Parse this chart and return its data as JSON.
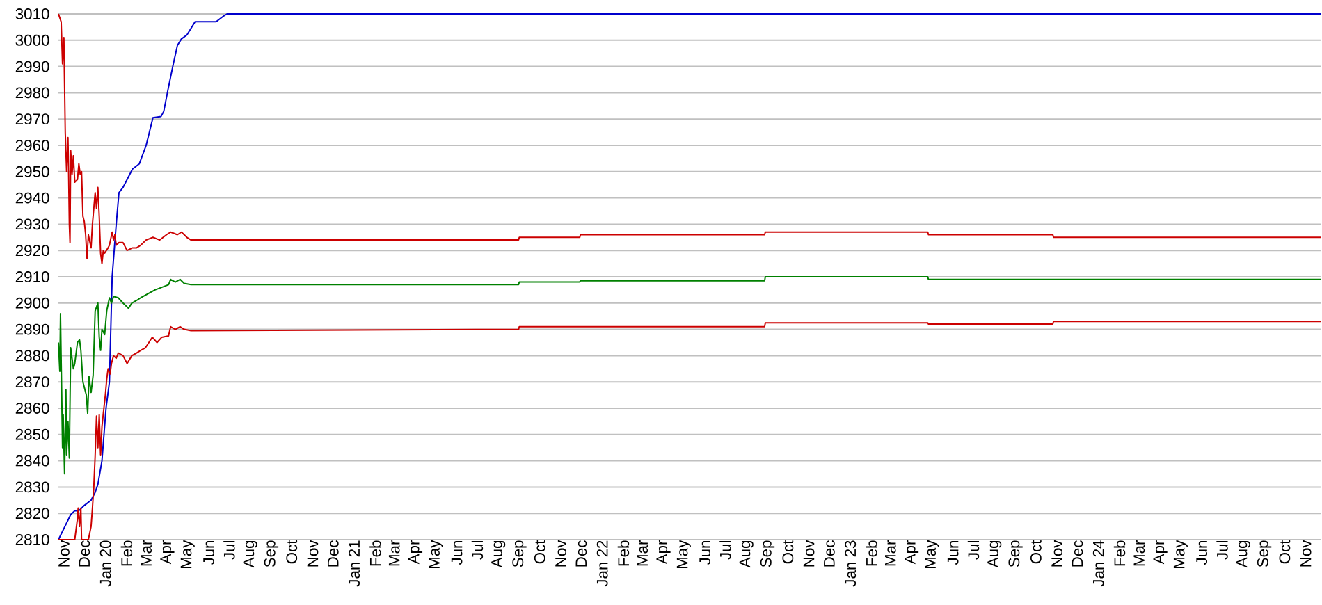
{
  "chart_data": {
    "type": "line",
    "series": [
      {
        "color": "#0000cc",
        "x": [
          "2019-11-01",
          "2019-11-19",
          "2019-11-25",
          "2019-12-01",
          "2019-12-09",
          "2019-12-19",
          "2019-12-25",
          "2019-12-29",
          "2020-01-04",
          "2020-01-10",
          "2020-01-15",
          "2020-01-19",
          "2020-01-25",
          "2020-01-29",
          "2020-02-04",
          "2020-02-14",
          "2020-02-18",
          "2020-02-28",
          "2020-03-09",
          "2020-03-19",
          "2020-03-31",
          "2020-04-04",
          "2020-04-10",
          "2020-04-18",
          "2020-04-24",
          "2020-04-30",
          "2020-05-08",
          "2020-05-20",
          "2020-06-20",
          "2020-06-30",
          "2020-07-06",
          "2024-12-01"
        ],
        "values": [
          2810,
          2819.5,
          2821,
          2821,
          2823,
          2825,
          2828,
          2831,
          2840,
          2860,
          2870,
          2910,
          2930,
          2942,
          2944,
          2949,
          2951,
          2953,
          2960,
          2970.5,
          2971,
          2973,
          2981,
          2991,
          2998,
          3000.5,
          3002,
          3007,
          3007,
          3009,
          3010,
          3010
        ]
      },
      {
        "color": "#cc0000",
        "x": [
          "2019-11-01",
          "2019-11-05",
          "2019-11-07",
          "2019-11-09",
          "2019-11-11",
          "2019-11-13",
          "2019-11-15",
          "2019-11-16",
          "2019-11-17",
          "2019-11-18",
          "2019-11-19",
          "2019-11-21",
          "2019-11-23",
          "2019-11-25",
          "2019-11-29",
          "2019-12-01",
          "2019-12-03",
          "2019-12-05",
          "2019-12-07",
          "2019-12-09",
          "2019-12-11",
          "2019-12-13",
          "2019-12-15",
          "2019-12-19",
          "2019-12-21",
          "2019-12-25",
          "2019-12-27",
          "2019-12-29",
          "2019-12-31",
          "2020-01-02",
          "2020-01-04",
          "2020-01-06",
          "2020-01-08",
          "2020-01-13",
          "2020-01-15",
          "2020-01-19",
          "2020-01-21",
          "2020-01-23",
          "2020-01-25",
          "2020-01-29",
          "2020-02-04",
          "2020-02-10",
          "2020-02-18",
          "2020-02-24",
          "2020-03-01",
          "2020-03-09",
          "2020-03-19",
          "2020-03-29",
          "2020-04-08",
          "2020-04-14",
          "2020-04-24",
          "2020-04-30",
          "2020-05-08",
          "2020-05-14",
          "2021-09-08",
          "2021-09-09",
          "2021-12-07",
          "2021-12-08",
          "2022-09-05",
          "2022-09-06",
          "2023-05-03",
          "2023-05-04",
          "2023-11-03",
          "2023-11-04",
          "2024-12-01"
        ],
        "values": [
          3010,
          3007,
          2991,
          3001,
          2965,
          2950,
          2963,
          2949,
          2930,
          2923,
          2958,
          2949,
          2956,
          2946,
          2947,
          2953,
          2949,
          2950,
          2933,
          2931,
          2926,
          2917,
          2926,
          2921,
          2930,
          2942,
          2936,
          2944,
          2933,
          2919,
          2915,
          2920,
          2919,
          2921,
          2922,
          2927,
          2924,
          2926,
          2922,
          2923,
          2923,
          2920,
          2921,
          2921,
          2922,
          2924,
          2925,
          2924,
          2926,
          2927,
          2926,
          2927,
          2925,
          2924,
          2924,
          2925,
          2925,
          2926,
          2926,
          2927,
          2927,
          2926,
          2926,
          2925,
          2925
        ]
      },
      {
        "color": "#008000",
        "x": [
          "2019-11-01",
          "2019-11-03",
          "2019-11-04",
          "2019-11-06",
          "2019-11-07",
          "2019-11-08",
          "2019-11-10",
          "2019-11-12",
          "2019-11-13",
          "2019-11-15",
          "2019-11-17",
          "2019-11-19",
          "2019-11-21",
          "2019-11-23",
          "2019-11-25",
          "2019-11-29",
          "2019-12-02",
          "2019-12-04",
          "2019-12-07",
          "2019-12-09",
          "2019-12-12",
          "2019-12-14",
          "2019-12-16",
          "2019-12-19",
          "2019-12-22",
          "2019-12-25",
          "2019-12-29",
          "2019-12-31",
          "2020-01-02",
          "2020-01-04",
          "2020-01-08",
          "2020-01-11",
          "2020-01-15",
          "2020-01-18",
          "2020-01-21",
          "2020-01-28",
          "2020-02-04",
          "2020-02-12",
          "2020-02-17",
          "2020-02-24",
          "2020-03-01",
          "2020-03-08",
          "2020-03-15",
          "2020-03-22",
          "2020-04-01",
          "2020-04-11",
          "2020-04-14",
          "2020-04-21",
          "2020-04-28",
          "2020-05-04",
          "2020-05-14",
          "2021-09-08",
          "2021-09-09",
          "2021-12-07",
          "2021-12-08",
          "2022-09-05",
          "2022-09-06",
          "2023-05-03",
          "2023-05-04",
          "2024-12-01"
        ],
        "values": [
          2885,
          2874,
          2896,
          2862,
          2845,
          2857.5,
          2835,
          2867,
          2842,
          2855,
          2841,
          2883,
          2879,
          2875,
          2877,
          2885,
          2886,
          2882,
          2870,
          2868,
          2865,
          2858,
          2872,
          2866,
          2872.5,
          2897,
          2900,
          2887,
          2882,
          2890,
          2888,
          2897,
          2902,
          2900,
          2902.5,
          2902,
          2900,
          2898,
          2900,
          2901,
          2902,
          2903,
          2904,
          2905,
          2906,
          2907,
          2909,
          2908,
          2909,
          2907.5,
          2907,
          2907,
          2908,
          2908,
          2908.5,
          2908.5,
          2910,
          2910,
          2909,
          2909
        ]
      },
      {
        "color": "#cc0000",
        "x": [
          "2019-11-01",
          "2019-11-25",
          "2019-11-29",
          "2019-11-30",
          "2019-12-02",
          "2019-12-04",
          "2019-12-05",
          "2019-12-15",
          "2019-12-19",
          "2019-12-21",
          "2019-12-23",
          "2019-12-25",
          "2019-12-27",
          "2019-12-29",
          "2019-12-31",
          "2020-01-02",
          "2020-01-04",
          "2020-01-06",
          "2020-01-09",
          "2020-01-11",
          "2020-01-13",
          "2020-01-16",
          "2020-01-18",
          "2020-01-21",
          "2020-01-25",
          "2020-01-28",
          "2020-02-04",
          "2020-02-10",
          "2020-02-17",
          "2020-02-24",
          "2020-03-01",
          "2020-03-08",
          "2020-03-18",
          "2020-03-25",
          "2020-04-01",
          "2020-04-11",
          "2020-04-14",
          "2020-04-21",
          "2020-04-28",
          "2020-05-04",
          "2020-05-14",
          "2021-09-08",
          "2021-09-09",
          "2022-09-05",
          "2022-09-06",
          "2023-05-03",
          "2023-05-04",
          "2023-11-03",
          "2023-11-04",
          "2024-12-01"
        ],
        "values": [
          2810,
          2810,
          2818,
          2822,
          2815,
          2822,
          2810,
          2810,
          2815,
          2822,
          2830,
          2842,
          2857,
          2845,
          2857.5,
          2842,
          2853,
          2858,
          2865,
          2871,
          2875,
          2873,
          2877,
          2880,
          2879,
          2881,
          2880,
          2877,
          2880,
          2881,
          2882,
          2883,
          2887,
          2885,
          2887,
          2887.5,
          2891,
          2890,
          2891,
          2890,
          2889.5,
          2890,
          2891,
          2891,
          2892.5,
          2892.5,
          2892,
          2892,
          2893,
          2893
        ]
      }
    ],
    "xlim": [
      "2019-11-01",
      "2024-12-01"
    ],
    "xticks": [
      {
        "value": "2019-11-01",
        "label": "Nov"
      },
      {
        "value": "2019-12-01",
        "label": "Dec"
      },
      {
        "value": "2020-01-01",
        "label": "Jan 20"
      },
      {
        "value": "2020-02-01",
        "label": "Feb"
      },
      {
        "value": "2020-03-01",
        "label": "Mar"
      },
      {
        "value": "2020-04-01",
        "label": "Apr"
      },
      {
        "value": "2020-05-01",
        "label": "May"
      },
      {
        "value": "2020-06-01",
        "label": "Jun"
      },
      {
        "value": "2020-07-01",
        "label": "Jul"
      },
      {
        "value": "2020-08-01",
        "label": "Aug"
      },
      {
        "value": "2020-09-01",
        "label": "Sep"
      },
      {
        "value": "2020-10-01",
        "label": "Oct"
      },
      {
        "value": "2020-11-01",
        "label": "Nov"
      },
      {
        "value": "2020-12-01",
        "label": "Dec"
      },
      {
        "value": "2021-01-01",
        "label": "Jan 21"
      },
      {
        "value": "2021-02-01",
        "label": "Feb"
      },
      {
        "value": "2021-03-01",
        "label": "Mar"
      },
      {
        "value": "2021-04-01",
        "label": "Apr"
      },
      {
        "value": "2021-05-01",
        "label": "May"
      },
      {
        "value": "2021-06-01",
        "label": "Jun"
      },
      {
        "value": "2021-07-01",
        "label": "Jul"
      },
      {
        "value": "2021-08-01",
        "label": "Aug"
      },
      {
        "value": "2021-09-01",
        "label": "Sep"
      },
      {
        "value": "2021-10-01",
        "label": "Oct"
      },
      {
        "value": "2021-11-01",
        "label": "Nov"
      },
      {
        "value": "2021-12-01",
        "label": "Dec"
      },
      {
        "value": "2022-01-01",
        "label": "Jan 22"
      },
      {
        "value": "2022-02-01",
        "label": "Feb"
      },
      {
        "value": "2022-03-01",
        "label": "Mar"
      },
      {
        "value": "2022-04-01",
        "label": "Apr"
      },
      {
        "value": "2022-05-01",
        "label": "May"
      },
      {
        "value": "2022-06-01",
        "label": "Jun"
      },
      {
        "value": "2022-07-01",
        "label": "Jul"
      },
      {
        "value": "2022-08-01",
        "label": "Aug"
      },
      {
        "value": "2022-09-01",
        "label": "Sep"
      },
      {
        "value": "2022-10-01",
        "label": "Oct"
      },
      {
        "value": "2022-11-01",
        "label": "Nov"
      },
      {
        "value": "2022-12-01",
        "label": "Dec"
      },
      {
        "value": "2023-01-01",
        "label": "Jan 23"
      },
      {
        "value": "2023-02-01",
        "label": "Feb"
      },
      {
        "value": "2023-03-01",
        "label": "Mar"
      },
      {
        "value": "2023-04-01",
        "label": "Apr"
      },
      {
        "value": "2023-05-01",
        "label": "May"
      },
      {
        "value": "2023-06-01",
        "label": "Jun"
      },
      {
        "value": "2023-07-01",
        "label": "Jul"
      },
      {
        "value": "2023-08-01",
        "label": "Aug"
      },
      {
        "value": "2023-09-01",
        "label": "Sep"
      },
      {
        "value": "2023-10-01",
        "label": "Oct"
      },
      {
        "value": "2023-11-01",
        "label": "Nov"
      },
      {
        "value": "2023-12-01",
        "label": "Dec"
      },
      {
        "value": "2024-01-01",
        "label": "Jan 24"
      },
      {
        "value": "2024-02-01",
        "label": "Feb"
      },
      {
        "value": "2024-03-01",
        "label": "Mar"
      },
      {
        "value": "2024-04-01",
        "label": "Apr"
      },
      {
        "value": "2024-05-01",
        "label": "May"
      },
      {
        "value": "2024-06-01",
        "label": "Jun"
      },
      {
        "value": "2024-07-01",
        "label": "Jul"
      },
      {
        "value": "2024-08-01",
        "label": "Aug"
      },
      {
        "value": "2024-09-01",
        "label": "Sep"
      },
      {
        "value": "2024-10-01",
        "label": "Oct"
      },
      {
        "value": "2024-11-01",
        "label": "Nov"
      }
    ],
    "ylim": [
      2810,
      3010
    ],
    "yticks": [
      2810,
      2820,
      2830,
      2840,
      2850,
      2860,
      2870,
      2880,
      2890,
      2900,
      2910,
      2920,
      2930,
      2940,
      2950,
      2960,
      2970,
      2980,
      2990,
      3000,
      3010
    ],
    "grid": "y",
    "line_style": "solid"
  }
}
